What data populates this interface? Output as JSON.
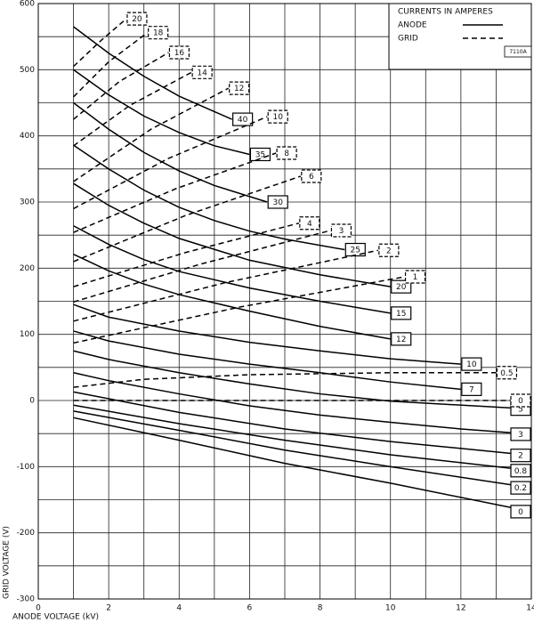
{
  "chart_data": {
    "type": "line",
    "x_label": "ANODE VOLTAGE (kV)",
    "y_label": "GRID VOLTAGE (V)",
    "xlim": [
      0,
      14
    ],
    "ylim": [
      -300,
      600
    ],
    "xticks": [
      0,
      2,
      4,
      6,
      8,
      10,
      12,
      14
    ],
    "yticks": [
      -300,
      -200,
      -100,
      0,
      100,
      200,
      300,
      400,
      500,
      600
    ],
    "x_minor_ticks": [
      1,
      3,
      5,
      7,
      9,
      11,
      13
    ],
    "y_minor_ticks": [
      -250,
      -150,
      -50,
      50,
      150,
      250,
      350,
      450,
      550
    ],
    "grid": true,
    "legend": {
      "title": "CURRENTS IN AMPERES",
      "position": "upper right",
      "entries": [
        {
          "label": "ANODE",
          "style": "solid"
        },
        {
          "label": "GRID",
          "style": "dashed"
        }
      ]
    },
    "code": "7110A",
    "series": [
      {
        "name": "40",
        "style": "solid",
        "color": "#000",
        "x": [
          1,
          2,
          3,
          4,
          5.5
        ],
        "values": [
          565,
          525,
          490,
          460,
          425
        ]
      },
      {
        "name": "35",
        "style": "solid",
        "color": "#000",
        "x": [
          1,
          2,
          3,
          4,
          5,
          6
        ],
        "values": [
          500,
          462,
          430,
          405,
          385,
          372
        ]
      },
      {
        "name": "30",
        "style": "solid",
        "color": "#000",
        "x": [
          1,
          2,
          3,
          4,
          5,
          6.5
        ],
        "values": [
          450,
          410,
          375,
          347,
          325,
          300
        ]
      },
      {
        "name": "25",
        "style": "solid",
        "color": "#000",
        "x": [
          1,
          2,
          3,
          4,
          5,
          6,
          7,
          8.7
        ],
        "values": [
          386,
          350,
          318,
          292,
          272,
          256,
          244,
          228
        ]
      },
      {
        "name": "20",
        "style": "solid",
        "color": "#000",
        "x": [
          1,
          2,
          3,
          4,
          6,
          8,
          10
        ],
        "values": [
          328,
          295,
          268,
          245,
          212,
          190,
          172
        ]
      },
      {
        "name": "15",
        "style": "solid",
        "color": "#000",
        "x": [
          1,
          2,
          3,
          4,
          6,
          8,
          10
        ],
        "values": [
          264,
          236,
          213,
          195,
          170,
          150,
          132
        ]
      },
      {
        "name": "12",
        "style": "solid",
        "color": "#000",
        "x": [
          1,
          2,
          3,
          4,
          6,
          8,
          10
        ],
        "values": [
          221,
          196,
          176,
          160,
          135,
          112,
          93
        ]
      },
      {
        "name": "10",
        "style": "solid",
        "color": "#000",
        "x": [
          1,
          2,
          4,
          6,
          8,
          10,
          12
        ],
        "values": [
          145,
          126,
          105,
          88,
          75,
          63,
          55
        ]
      },
      {
        "name": "7",
        "style": "solid",
        "color": "#000",
        "x": [
          1,
          2,
          4,
          6,
          8,
          10,
          12
        ],
        "values": [
          105,
          90,
          70,
          55,
          42,
          28,
          17
        ]
      },
      {
        "name": "5",
        "style": "solid",
        "color": "#000",
        "x": [
          1,
          2,
          4,
          6,
          8,
          10,
          14
        ],
        "values": [
          75,
          62,
          42,
          25,
          10,
          -1,
          -13
        ]
      },
      {
        "name": "3",
        "style": "solid",
        "color": "#000",
        "x": [
          1,
          2,
          4,
          6,
          8,
          10,
          12,
          14
        ],
        "values": [
          42,
          30,
          10,
          -8,
          -22,
          -33,
          -43,
          -51
        ]
      },
      {
        "name": "2",
        "style": "solid",
        "color": "#000",
        "x": [
          1,
          4,
          7,
          10,
          14
        ],
        "values": [
          13,
          -18,
          -43,
          -62,
          -83
        ]
      },
      {
        "name": "0.8",
        "style": "solid",
        "color": "#000",
        "x": [
          1,
          4,
          7,
          10,
          14
        ],
        "values": [
          -7,
          -35,
          -60,
          -82,
          -106
        ]
      },
      {
        "name": "0.2",
        "style": "solid",
        "color": "#000",
        "x": [
          1,
          4,
          7,
          10,
          14
        ],
        "values": [
          -16,
          -45,
          -75,
          -100,
          -132
        ]
      },
      {
        "name": "0",
        "style": "solid",
        "color": "#000",
        "x": [
          1,
          4,
          7,
          10,
          14
        ],
        "values": [
          -26,
          -60,
          -95,
          -125,
          -168
        ]
      },
      {
        "name": "20",
        "style": "dashed",
        "color": "#000",
        "x": [
          1,
          1.8,
          2.5
        ],
        "values": [
          505,
          545,
          577
        ]
      },
      {
        "name": "18",
        "style": "dashed",
        "color": "#000",
        "x": [
          1,
          2,
          3.1
        ],
        "values": [
          459,
          512,
          556
        ]
      },
      {
        "name": "16",
        "style": "dashed",
        "color": "#000",
        "x": [
          1,
          2.3,
          3.7
        ],
        "values": [
          425,
          482,
          526
        ]
      },
      {
        "name": "14",
        "style": "dashed",
        "color": "#000",
        "x": [
          1,
          2.6,
          4.35
        ],
        "values": [
          385,
          446,
          496
        ]
      },
      {
        "name": "12",
        "style": "dashed",
        "color": "#000",
        "x": [
          1,
          3.2,
          5.4
        ],
        "values": [
          331,
          410,
          472
        ]
      },
      {
        "name": "10",
        "style": "dashed",
        "color": "#000",
        "x": [
          1,
          3.7,
          6.5
        ],
        "values": [
          290,
          366,
          429
        ]
      },
      {
        "name": "8",
        "style": "dashed",
        "color": "#000",
        "x": [
          1,
          3.9,
          6.75
        ],
        "values": [
          254,
          320,
          374
        ]
      },
      {
        "name": "6",
        "style": "dashed",
        "color": "#000",
        "x": [
          1,
          4.2,
          7.45
        ],
        "values": [
          210,
          280,
          339
        ]
      },
      {
        "name": "4",
        "style": "dashed",
        "color": "#000",
        "x": [
          1,
          4.2,
          7.4
        ],
        "values": [
          172,
          224,
          268
        ]
      },
      {
        "name": "3",
        "style": "dashed",
        "color": "#000",
        "x": [
          1,
          4.6,
          8.3
        ],
        "values": [
          149,
          206,
          257
        ]
      },
      {
        "name": "2",
        "style": "dashed",
        "color": "#000",
        "x": [
          1,
          5.3,
          9.65
        ],
        "values": [
          120,
          178,
          227
        ]
      },
      {
        "name": "1",
        "style": "dashed",
        "color": "#000",
        "x": [
          1,
          5.7,
          10.4
        ],
        "values": [
          87,
          141,
          187
        ]
      },
      {
        "name": "0.5",
        "style": "dashed",
        "color": "#000",
        "x": [
          1,
          3,
          6,
          10,
          13
        ],
        "values": [
          20,
          32,
          39,
          42,
          42
        ]
      },
      {
        "name": "0",
        "style": "dashed",
        "color": "#000",
        "x": [
          1,
          14
        ],
        "values": [
          0,
          0
        ]
      }
    ]
  }
}
